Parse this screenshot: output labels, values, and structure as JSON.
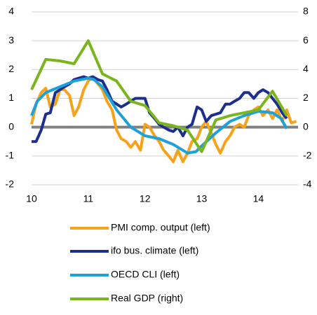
{
  "chart_data": {
    "type": "line",
    "x_axis": {
      "xlim": [
        10,
        14.7
      ],
      "xticks": [
        10,
        11,
        12,
        13,
        14
      ]
    },
    "ylim": [
      -2,
      4
    ],
    "yticks": [
      -2,
      -1,
      0,
      1,
      2,
      3,
      4
    ],
    "y2lim": [
      -4,
      8
    ],
    "y2ticks": [
      -4,
      -2,
      0,
      2,
      4,
      6,
      8
    ],
    "grid": true,
    "legend": "bottom",
    "series": [
      {
        "name": "PMI comp. output (left)",
        "color": "#f7a21b",
        "x": [
          10,
          10.08,
          10.17,
          10.25,
          10.33,
          10.42,
          10.5,
          10.58,
          10.67,
          10.75,
          10.83,
          10.92,
          11,
          11.08,
          11.17,
          11.25,
          11.33,
          11.42,
          11.5,
          11.58,
          11.67,
          11.75,
          11.83,
          11.92,
          12,
          12.08,
          12.17,
          12.25,
          12.33,
          12.42,
          12.5,
          12.58,
          12.67,
          12.75,
          12.83,
          12.92,
          13,
          13.08,
          13.17,
          13.25,
          13.33,
          13.42,
          13.5,
          13.58,
          13.67,
          13.75,
          13.83,
          13.92,
          14,
          14.08,
          14.17,
          14.25,
          14.33,
          14.42,
          14.5,
          14.58,
          14.67
        ],
        "values": [
          0.1,
          0.8,
          1.2,
          1.35,
          0.7,
          0.8,
          1.3,
          1.3,
          1.1,
          0.4,
          0.7,
          1.3,
          1.6,
          1.75,
          1.5,
          1.3,
          0.9,
          0.6,
          -0.1,
          -0.4,
          -0.5,
          -0.7,
          -0.5,
          -0.8,
          0.1,
          0.0,
          -0.3,
          -0.5,
          -0.8,
          -1.0,
          -1.2,
          -0.8,
          -1.2,
          -0.9,
          -0.5,
          -0.4,
          0.0,
          0.2,
          -0.2,
          -0.6,
          -0.9,
          -0.5,
          -0.3,
          0.0,
          0.1,
          0.0,
          0.4,
          0.6,
          0.7,
          0.4,
          0.6,
          0.3,
          0.6,
          0.2,
          0.6,
          0.15,
          0.2
        ]
      },
      {
        "name": "ifo bus. climate (left)",
        "color": "#1c2f8c",
        "x": [
          10,
          10.08,
          10.17,
          10.25,
          10.33,
          10.42,
          10.5,
          10.58,
          10.67,
          10.75,
          10.83,
          10.92,
          11,
          11.08,
          11.17,
          11.25,
          11.33,
          11.42,
          11.5,
          11.58,
          11.67,
          11.75,
          11.83,
          11.92,
          12,
          12.08,
          12.17,
          12.25,
          12.33,
          12.42,
          12.5,
          12.58,
          12.67,
          12.75,
          12.83,
          12.92,
          13,
          13.08,
          13.17,
          13.25,
          13.33,
          13.42,
          13.5,
          13.58,
          13.67,
          13.75,
          13.83,
          13.92,
          14,
          14.08,
          14.17,
          14.25,
          14.33,
          14.42,
          14.5
        ],
        "values": [
          -0.5,
          -0.5,
          -0.1,
          0.45,
          0.5,
          1.2,
          1.3,
          1.4,
          1.5,
          1.65,
          1.7,
          1.75,
          1.7,
          1.75,
          1.65,
          1.6,
          1.3,
          0.9,
          0.8,
          0.7,
          0.8,
          0.9,
          1.0,
          1.0,
          1.0,
          0.5,
          0.3,
          0.1,
          0.0,
          -0.1,
          -0.15,
          0.0,
          -0.3,
          0.0,
          0.1,
          0.7,
          0.6,
          0.2,
          0.4,
          0.45,
          0.5,
          0.8,
          0.8,
          0.9,
          1.0,
          1.2,
          1.2,
          1.0,
          1.2,
          1.3,
          1.2,
          1.0,
          0.8,
          0.5,
          0.3
        ]
      },
      {
        "name": "OECD CLI (left)",
        "color": "#1ea0d8",
        "x": [
          10,
          10.1,
          10.25,
          10.5,
          10.75,
          11,
          11.1,
          11.25,
          11.5,
          11.75,
          12,
          12.25,
          12.5,
          12.75,
          12.9,
          13,
          13.25,
          13.5,
          13.75,
          14,
          14.25,
          14.4,
          14.5
        ],
        "values": [
          0.4,
          0.9,
          1.2,
          1.4,
          1.6,
          1.7,
          1.65,
          1.4,
          0.6,
          0.0,
          -0.3,
          -0.4,
          -0.6,
          -0.9,
          -0.85,
          -0.65,
          -0.2,
          0.2,
          0.4,
          0.55,
          0.5,
          0.3,
          -0.05
        ]
      },
      {
        "name": "Real GDP (right)",
        "color": "#7ab51d",
        "axis": "y2",
        "x": [
          10,
          10.25,
          10.5,
          10.75,
          11,
          11.25,
          11.5,
          11.75,
          12,
          12.25,
          12.5,
          12.75,
          13,
          13.25,
          13.5,
          13.75,
          14,
          14.25,
          14.5
        ],
        "values": [
          2.6,
          4.7,
          4.6,
          4.4,
          6.0,
          3.7,
          3.2,
          1.8,
          1.5,
          0.3,
          0.1,
          -0.2,
          -1.7,
          0.5,
          0.8,
          1.0,
          1.2,
          2.5,
          0.8
        ]
      }
    ]
  }
}
